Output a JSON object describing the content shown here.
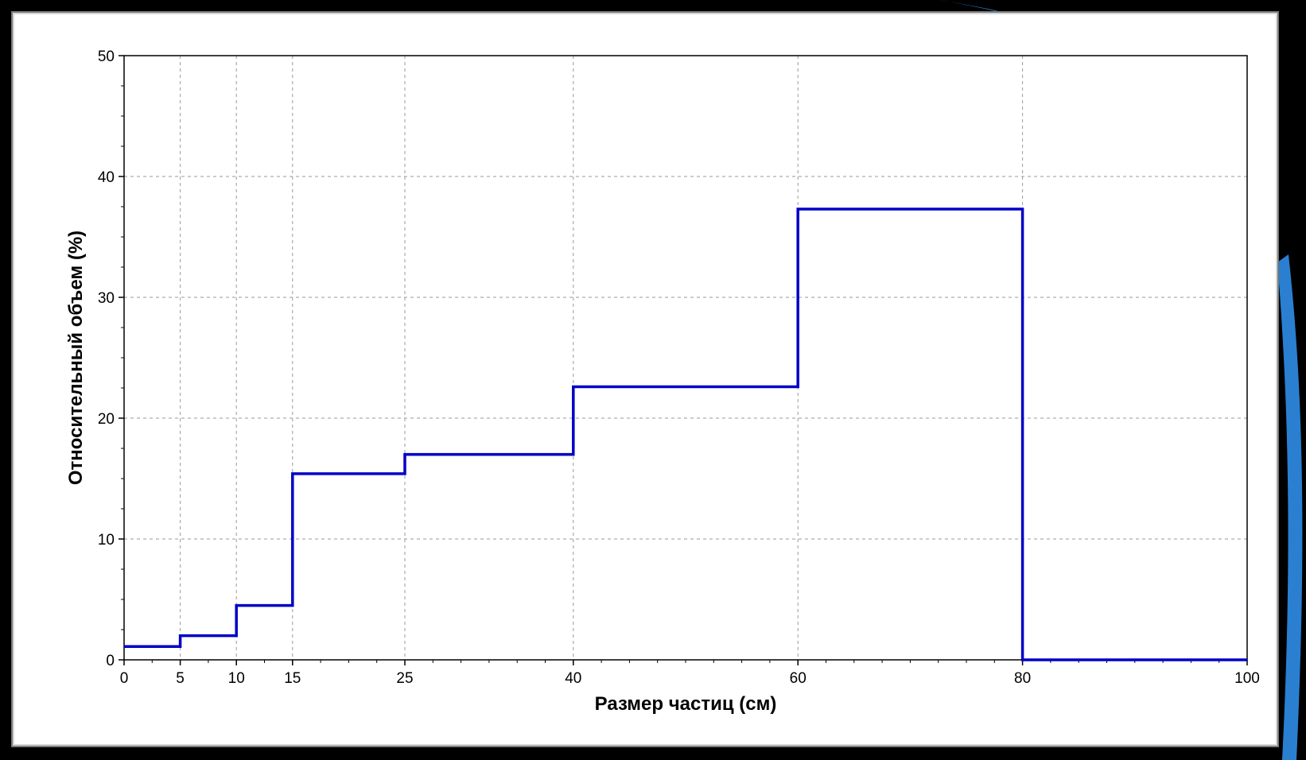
{
  "colors": {
    "background": "#000000",
    "panel": "#ffffff",
    "accent_swoosh": "#2a7fd0",
    "series": "#0000c8",
    "grid": "#9a9a9a"
  },
  "chart_data": {
    "type": "line",
    "step": "post",
    "xlabel": "Размер частиц (см)",
    "ylabel": "Относительный объем (%)",
    "xlim": [
      0,
      100
    ],
    "ylim": [
      0,
      50
    ],
    "x_ticks": [
      {
        "value": 0,
        "label": "0"
      },
      {
        "value": 5,
        "label": "5"
      },
      {
        "value": 10,
        "label": "10"
      },
      {
        "value": 15,
        "label": "15"
      },
      {
        "value": 25,
        "label": "25"
      },
      {
        "value": 40,
        "label": "40"
      },
      {
        "value": 60,
        "label": "60"
      },
      {
        "value": 80,
        "label": "80"
      },
      {
        "value": 100,
        "label": "100"
      }
    ],
    "y_ticks": [
      {
        "value": 0,
        "label": "0"
      },
      {
        "value": 10,
        "label": "10"
      },
      {
        "value": 20,
        "label": "20"
      },
      {
        "value": 30,
        "label": "30"
      },
      {
        "value": 40,
        "label": "40"
      },
      {
        "value": 50,
        "label": "50"
      }
    ],
    "grid": true,
    "series": [
      {
        "x": [
          0,
          5,
          10,
          15,
          25,
          40,
          60,
          80,
          100
        ],
        "y": [
          1.1,
          2.0,
          4.5,
          15.4,
          17.0,
          22.6,
          37.3,
          0,
          0
        ]
      }
    ]
  }
}
